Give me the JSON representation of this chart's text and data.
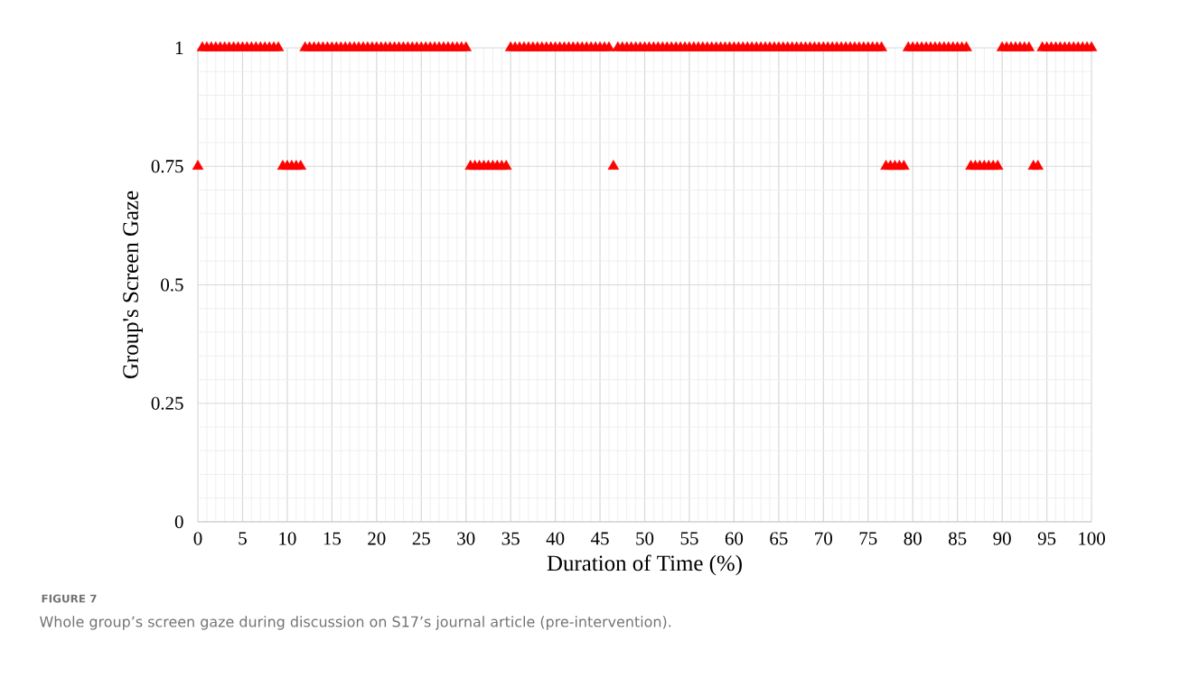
{
  "chart_data": {
    "type": "scatter",
    "xlabel": "Duration of Time (%)",
    "ylabel": "Group's Screen Gaze",
    "annotations": [
      "FIGURE 7",
      "Whole group’s screen gaze during discussion on S17’s journal article (pre-intervention)."
    ],
    "x": [
      0,
      0.5,
      1,
      1.5,
      2,
      2.5,
      3,
      3.5,
      4,
      4.5,
      5,
      5.5,
      6,
      6.5,
      7,
      7.5,
      8,
      8.5,
      9,
      9.5,
      10,
      10.5,
      11,
      11.5,
      12,
      12.5,
      13,
      13.5,
      14,
      14.5,
      15,
      15.5,
      16,
      16.5,
      17,
      17.5,
      18,
      18.5,
      19,
      19.5,
      20,
      20.5,
      21,
      21.5,
      22,
      22.5,
      23,
      23.5,
      24,
      24.5,
      25,
      25.5,
      26,
      26.5,
      27,
      27.5,
      28,
      28.5,
      29,
      29.5,
      30,
      30.5,
      31,
      31.5,
      32,
      32.5,
      33,
      33.5,
      34,
      34.5,
      35,
      35.5,
      36,
      36.5,
      37,
      37.5,
      38,
      38.5,
      39,
      39.5,
      40,
      40.5,
      41,
      41.5,
      42,
      42.5,
      43,
      43.5,
      44,
      44.5,
      45,
      45.5,
      46,
      46.5,
      47,
      47.5,
      48,
      48.5,
      49,
      49.5,
      50,
      50.5,
      51,
      51.5,
      52,
      52.5,
      53,
      53.5,
      54,
      54.5,
      55,
      55.5,
      56,
      56.5,
      57,
      57.5,
      58,
      58.5,
      59,
      59.5,
      60,
      60.5,
      61,
      61.5,
      62,
      62.5,
      63,
      63.5,
      64,
      64.5,
      65,
      65.5,
      66,
      66.5,
      67,
      67.5,
      68,
      68.5,
      69,
      69.5,
      70,
      70.5,
      71,
      71.5,
      72,
      72.5,
      73,
      73.5,
      74,
      74.5,
      75,
      75.5,
      76,
      76.5,
      77,
      77.5,
      78,
      78.5,
      79,
      79.5,
      80,
      80.5,
      81,
      81.5,
      82,
      82.5,
      83,
      83.5,
      84,
      84.5,
      85,
      85.5,
      86,
      86.5,
      87,
      87.5,
      88,
      88.5,
      89,
      89.5,
      90,
      90.5,
      91,
      91.5,
      92,
      92.5,
      93,
      93.5,
      94,
      94.5,
      95,
      95.5,
      96,
      96.5,
      97,
      97.5,
      98,
      98.5,
      99,
      99.5,
      100
    ],
    "values": [
      0.75,
      1,
      1,
      1,
      1,
      1,
      1,
      1,
      1,
      1,
      1,
      1,
      1,
      1,
      1,
      1,
      1,
      1,
      1,
      0.75,
      0.75,
      0.75,
      0.75,
      0.75,
      1,
      1,
      1,
      1,
      1,
      1,
      1,
      1,
      1,
      1,
      1,
      1,
      1,
      1,
      1,
      1,
      1,
      1,
      1,
      1,
      1,
      1,
      1,
      1,
      1,
      1,
      1,
      1,
      1,
      1,
      1,
      1,
      1,
      1,
      1,
      1,
      1,
      0.75,
      0.75,
      0.75,
      0.75,
      0.75,
      0.75,
      0.75,
      0.75,
      0.75,
      1,
      1,
      1,
      1,
      1,
      1,
      1,
      1,
      1,
      1,
      1,
      1,
      1,
      1,
      1,
      1,
      1,
      1,
      1,
      1,
      1,
      1,
      1,
      0.75,
      1,
      1,
      1,
      1,
      1,
      1,
      1,
      1,
      1,
      1,
      1,
      1,
      1,
      1,
      1,
      1,
      1,
      1,
      1,
      1,
      1,
      1,
      1,
      1,
      1,
      1,
      1,
      1,
      1,
      1,
      1,
      1,
      1,
      1,
      1,
      1,
      1,
      1,
      1,
      1,
      1,
      1,
      1,
      1,
      1,
      1,
      1,
      1,
      1,
      1,
      1,
      1,
      1,
      1,
      1,
      1,
      1,
      1,
      1,
      1,
      0.75,
      0.75,
      0.75,
      0.75,
      0.75,
      1,
      1,
      1,
      1,
      1,
      1,
      1,
      1,
      1,
      1,
      1,
      1,
      1,
      1,
      0.75,
      0.75,
      0.75,
      0.75,
      0.75,
      0.75,
      0.75,
      1,
      1,
      1,
      1,
      1,
      1,
      1,
      0.75,
      0.75,
      1,
      1,
      1,
      1,
      1,
      1,
      1,
      1,
      1,
      1,
      1,
      1
    ],
    "color": "#ff0000",
    "marker": "triangle",
    "xlim": [
      0,
      100
    ],
    "xticks": [
      0,
      5,
      10,
      15,
      20,
      25,
      30,
      35,
      40,
      45,
      50,
      55,
      60,
      65,
      70,
      75,
      80,
      85,
      90,
      95,
      100
    ],
    "ylim": [
      0,
      1
    ],
    "yticks": [
      0,
      0.25,
      0.5,
      0.75,
      1
    ],
    "grid": true
  }
}
